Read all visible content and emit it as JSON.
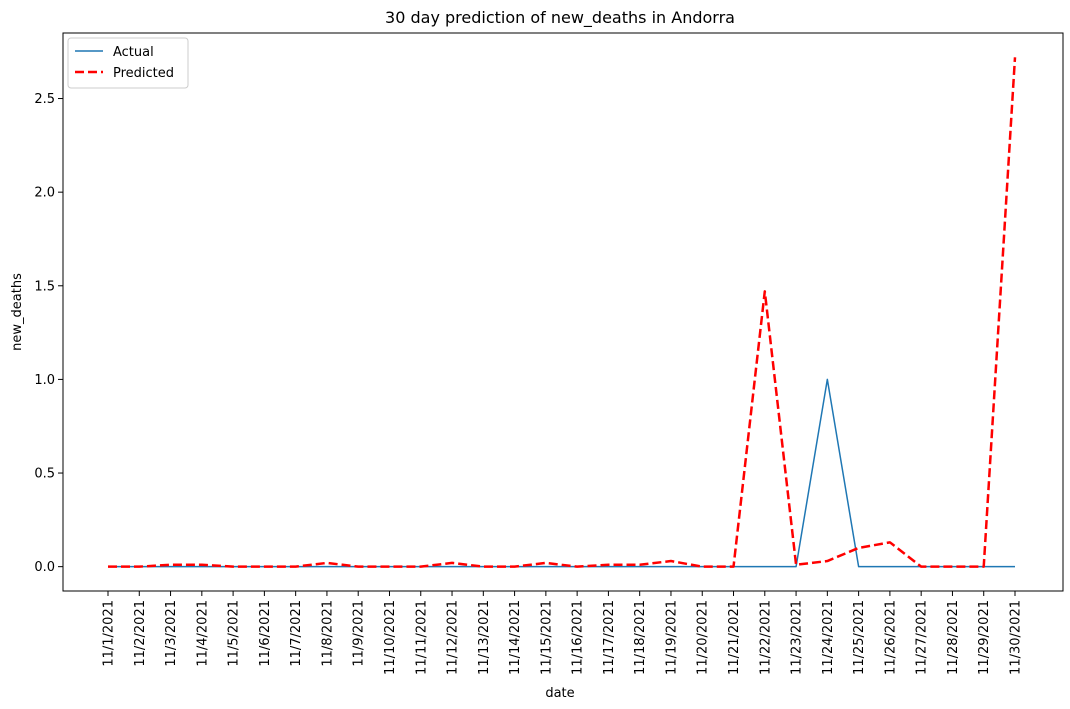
{
  "chart_data": {
    "type": "line",
    "title": "30 day prediction of new_deaths in Andorra",
    "xlabel": "date",
    "ylabel": "new_deaths",
    "ylim": [
      -0.13,
      2.85
    ],
    "yticks": [
      0.0,
      0.5,
      1.0,
      1.5,
      2.0,
      2.5
    ],
    "ytick_labels": [
      "0.0",
      "0.5",
      "1.0",
      "1.5",
      "2.0",
      "2.5"
    ],
    "grid": false,
    "legend_position": "top-left",
    "categories": [
      "11/1/2021",
      "11/2/2021",
      "11/3/2021",
      "11/4/2021",
      "11/5/2021",
      "11/6/2021",
      "11/7/2021",
      "11/8/2021",
      "11/9/2021",
      "11/10/2021",
      "11/11/2021",
      "11/12/2021",
      "11/13/2021",
      "11/14/2021",
      "11/15/2021",
      "11/16/2021",
      "11/17/2021",
      "11/18/2021",
      "11/19/2021",
      "11/20/2021",
      "11/21/2021",
      "11/22/2021",
      "11/23/2021",
      "11/24/2021",
      "11/25/2021",
      "11/26/2021",
      "11/27/2021",
      "11/28/2021",
      "11/29/2021",
      "11/30/2021"
    ],
    "series": [
      {
        "name": "Actual",
        "color": "#1f77b4",
        "style": "solid",
        "values": [
          0,
          0,
          0,
          0,
          0,
          0,
          0,
          0,
          0,
          0,
          0,
          0,
          0,
          0,
          0,
          0,
          0,
          0,
          0,
          0,
          0,
          0,
          0,
          1.0,
          0,
          0,
          0,
          0,
          0,
          0
        ]
      },
      {
        "name": "Predicted",
        "color": "#ff0000",
        "style": "dashed",
        "values": [
          0.0,
          0.0,
          0.01,
          0.01,
          0.0,
          0.0,
          0.0,
          0.02,
          0.0,
          0.0,
          0.0,
          0.02,
          0.0,
          0.0,
          0.02,
          0.0,
          0.01,
          0.01,
          0.03,
          0.0,
          0.0,
          1.47,
          0.01,
          0.03,
          0.1,
          0.13,
          0.0,
          0.0,
          0.0,
          2.72
        ]
      }
    ]
  }
}
